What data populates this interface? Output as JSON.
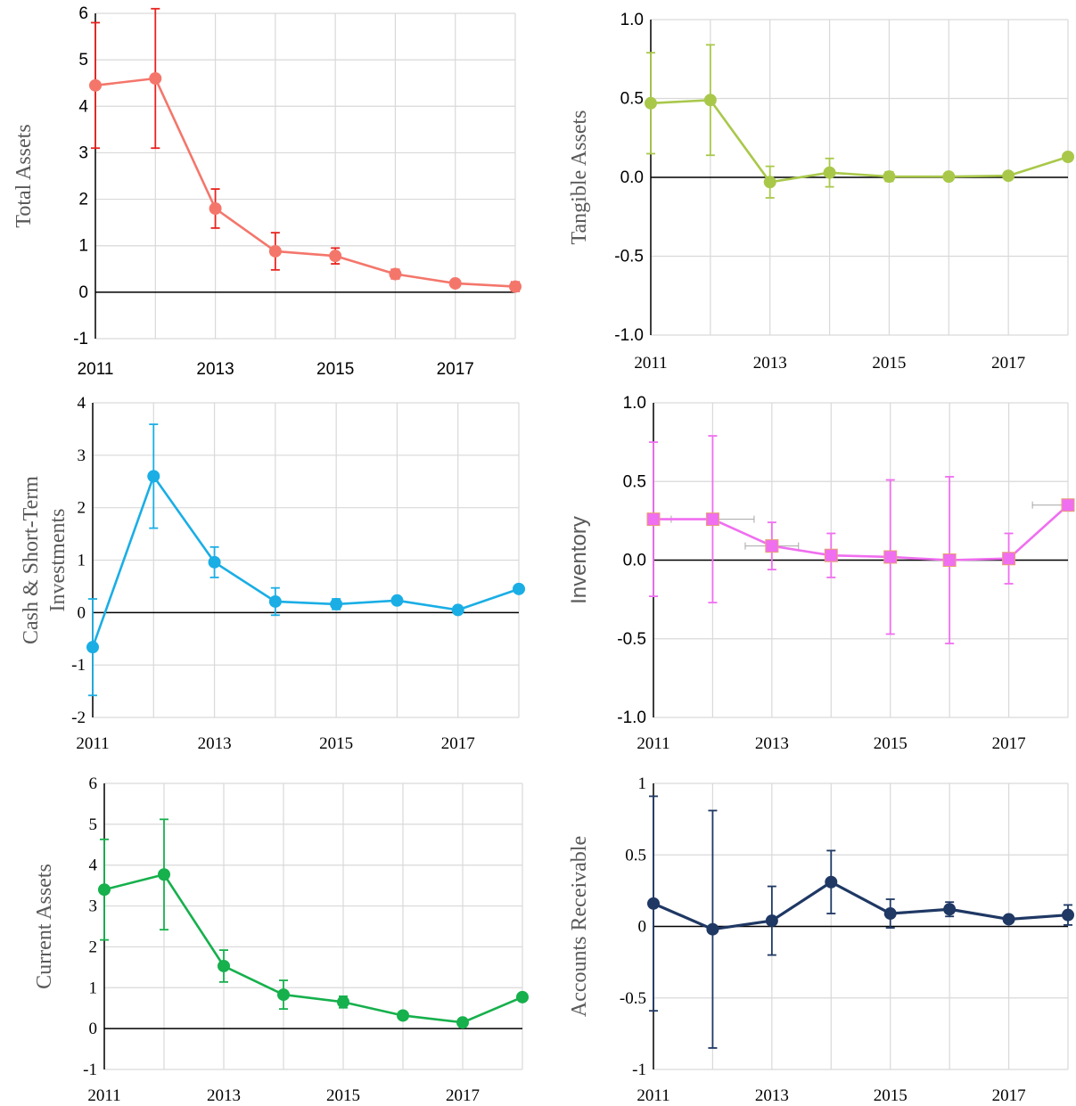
{
  "chart_data": [
    {
      "type": "line",
      "ylabel": "Total Assets",
      "color": "#f4766b",
      "error_color": "#e8231f",
      "ylim": [
        -1,
        6
      ],
      "yticks": [
        "-1",
        "0",
        "1",
        "2",
        "3",
        "4",
        "5",
        "6"
      ],
      "xticks": [
        "2011",
        "2013",
        "2015",
        "2017"
      ],
      "x": [
        2011,
        2012,
        2013,
        2014,
        2015,
        2016,
        2017,
        2018
      ],
      "y": [
        4.45,
        4.6,
        1.8,
        0.88,
        0.78,
        0.39,
        0.19,
        0.12
      ],
      "error": [
        1.35,
        1.5,
        0.42,
        0.4,
        0.17,
        0.1,
        0.05,
        0.1
      ],
      "marker": "circle",
      "grid": true,
      "font": "sans"
    },
    {
      "type": "line",
      "ylabel": "Tangible Assets",
      "color": "#a9c84a",
      "error_color": "#a9c84a",
      "ylim": [
        -1.0,
        1.0
      ],
      "yticks": [
        "-1.0",
        "-0.5",
        "0.0",
        "0.5",
        "1.0"
      ],
      "xticks": [
        "2011",
        "2013",
        "2015",
        "2017"
      ],
      "x": [
        2011,
        2012,
        2013,
        2014,
        2015,
        2016,
        2017,
        2018
      ],
      "y": [
        0.47,
        0.49,
        -0.03,
        0.03,
        0.005,
        0.005,
        0.01,
        0.13
      ],
      "error": [
        0.32,
        0.35,
        0.1,
        0.09,
        0.03,
        0.02,
        0.015,
        0.02
      ],
      "marker": "circle",
      "grid": true,
      "font": "mixed"
    },
    {
      "type": "line",
      "ylabel": "Cash & Short-Term Investments",
      "color": "#1aaee5",
      "error_color": "#1aaee5",
      "ylim": [
        -2,
        4
      ],
      "yticks": [
        "-2",
        "-1",
        "0",
        "1",
        "2",
        "3",
        "4"
      ],
      "xticks": [
        "2011",
        "2013",
        "2015",
        "2017"
      ],
      "x": [
        2011,
        2012,
        2013,
        2014,
        2015,
        2016,
        2017,
        2018
      ],
      "y": [
        -0.66,
        2.6,
        0.96,
        0.21,
        0.16,
        0.23,
        0.05,
        0.45
      ],
      "error": [
        0.92,
        0.99,
        0.29,
        0.26,
        0.1,
        0.05,
        0.03,
        0.05
      ],
      "marker": "circle",
      "grid": true,
      "font": "serif"
    },
    {
      "type": "line",
      "ylabel": "Inventory",
      "color": "#f06ef0",
      "error_color": "#f06ef0",
      "ylim": [
        -1.0,
        1.0
      ],
      "yticks": [
        "-1.0",
        "-0.5",
        "0.0",
        "0.5",
        "1.0"
      ],
      "xticks": [
        "2011",
        "2013",
        "2015",
        "2017"
      ],
      "x": [
        2011,
        2012,
        2013,
        2014,
        2015,
        2016,
        2017,
        2018
      ],
      "y": [
        0.26,
        0.26,
        0.09,
        0.03,
        0.02,
        0.0,
        0.01,
        0.35
      ],
      "error": [
        0.49,
        0.53,
        0.15,
        0.14,
        0.49,
        0.53,
        0.16,
        0.02
      ],
      "x_error": [
        0.0,
        0.7,
        0.45,
        0.0,
        0.0,
        0.0,
        0.0,
        0.6
      ],
      "marker": "square",
      "grid": true,
      "font": "mixed"
    },
    {
      "type": "line",
      "ylabel": "Current Assets",
      "color": "#16b04c",
      "error_color": "#16b04c",
      "ylim": [
        -1,
        6
      ],
      "yticks": [
        "-1",
        "0",
        "1",
        "2",
        "3",
        "4",
        "5",
        "6"
      ],
      "xticks": [
        "2011",
        "2013",
        "2015",
        "2017"
      ],
      "x": [
        2011,
        2012,
        2013,
        2014,
        2015,
        2016,
        2017,
        2018
      ],
      "y": [
        3.4,
        3.77,
        1.53,
        0.83,
        0.65,
        0.32,
        0.15,
        0.77
      ],
      "error": [
        1.23,
        1.35,
        0.39,
        0.35,
        0.14,
        0.06,
        0.04,
        0.06
      ],
      "marker": "circle",
      "grid": true,
      "font": "serif"
    },
    {
      "type": "line",
      "ylabel": "Accounts Receivable",
      "color": "#1f3864",
      "error_color": "#1f3864",
      "ylim": [
        -1,
        1
      ],
      "yticks": [
        "-1",
        "-0.5",
        "0",
        "0.5",
        "1"
      ],
      "xticks": [
        "2011",
        "2013",
        "2015",
        "2017"
      ],
      "x": [
        2011,
        2012,
        2013,
        2014,
        2015,
        2016,
        2017,
        2018
      ],
      "y": [
        0.16,
        -0.02,
        0.04,
        0.31,
        0.09,
        0.12,
        0.05,
        0.08
      ],
      "error": [
        0.75,
        0.83,
        0.24,
        0.22,
        0.1,
        0.05,
        0.02,
        0.07
      ],
      "marker": "circle",
      "grid": true,
      "font": "serif"
    }
  ]
}
